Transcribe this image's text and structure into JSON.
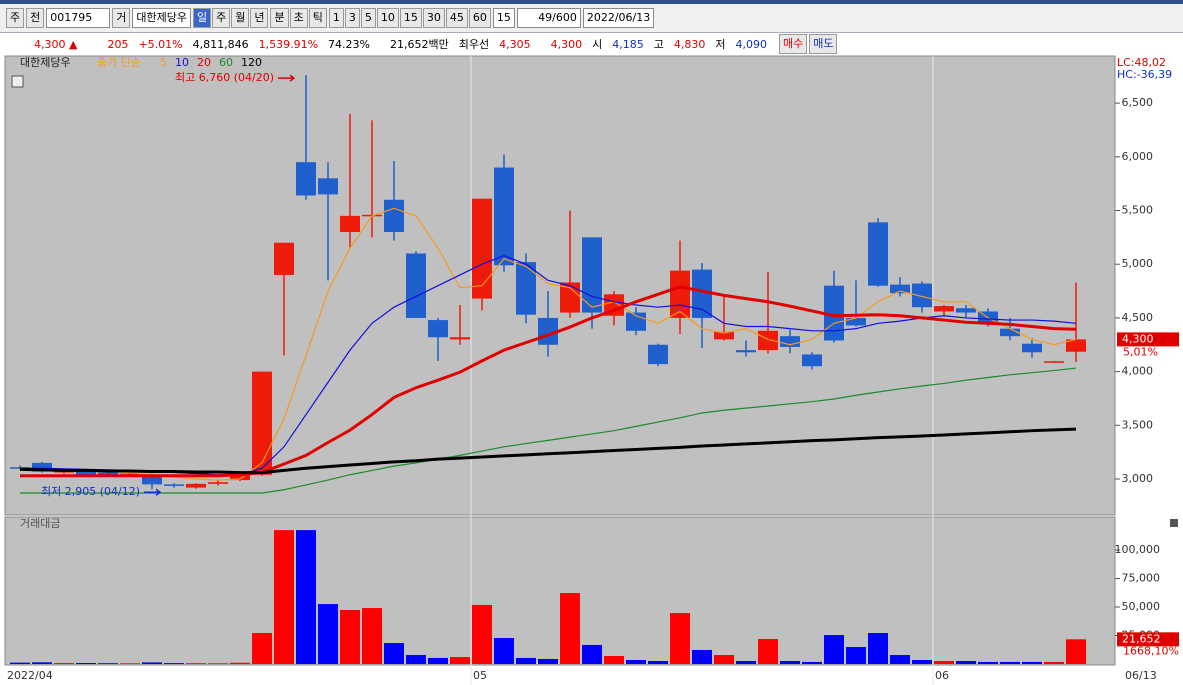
{
  "toolbar": {
    "market": "주",
    "prev": "전",
    "code": "001795",
    "group": "거",
    "name": "대한제당우",
    "periods": [
      "일",
      "주",
      "월",
      "년"
    ],
    "units": [
      "분",
      "초",
      "틱"
    ],
    "intervals": [
      "1",
      "3",
      "5",
      "10",
      "15",
      "30",
      "45",
      "60"
    ],
    "interval_select": "15",
    "count": "49",
    "count_max": "/600",
    "date": "2022/06/13"
  },
  "quote": {
    "price": "4,300 ▲",
    "change": "205",
    "change_pct": "+5.01%",
    "volume": "4,811,846",
    "volume_ratio": "1,539.91%",
    "turnover": "74.23%",
    "amount": "21,652백만",
    "best_label": "최우선",
    "ask": "4,305",
    "bid": "4,300",
    "open_label": "시",
    "open": "4,185",
    "high_label": "고",
    "high": "4,830",
    "low_label": "저",
    "low": "4,090",
    "buy": "매수",
    "sell": "매도"
  },
  "chart_data": [
    {
      "type": "candlestick",
      "title": "대한제당우",
      "ma_label": "종가 단순",
      "lc_label": "LC:48,02",
      "hc_label": "HC:-36,39",
      "categories": [
        "2022/04",
        null,
        null,
        null,
        null,
        null,
        null,
        null,
        null,
        null,
        null,
        null,
        null,
        null,
        null,
        null,
        null,
        null,
        null,
        null,
        null,
        "05",
        null,
        null,
        null,
        null,
        null,
        null,
        null,
        null,
        null,
        null,
        null,
        null,
        null,
        null,
        null,
        null,
        null,
        null,
        null,
        null,
        "06",
        null,
        null,
        null,
        null,
        null,
        null
      ],
      "last_date": "06/13",
      "open": [
        3110,
        3150,
        3060,
        3080,
        3060,
        3030,
        3040,
        2950,
        2920,
        2955,
        2990,
        3040,
        4900,
        5950,
        5800,
        5300,
        5450,
        5600,
        5100,
        4480,
        4300,
        4680,
        5900,
        5020,
        4500,
        4550,
        5250,
        4520,
        4550,
        4250,
        4500,
        4950,
        4300,
        4200,
        4200,
        4330,
        4160,
        4800,
        4500,
        5390,
        4810,
        4820,
        4560,
        4590,
        4560,
        4400,
        4260,
        4090,
        4185
      ],
      "high": [
        3125,
        3160,
        3090,
        3090,
        3070,
        3070,
        3050,
        2960,
        2960,
        2990,
        3070,
        4000,
        5200,
        6760,
        5950,
        6400,
        6340,
        5960,
        5120,
        4500,
        4620,
        5610,
        6020,
        5100,
        4750,
        5500,
        5250,
        4750,
        4600,
        4260,
        5220,
        5010,
        4700,
        4290,
        4930,
        4390,
        4180,
        4940,
        4850,
        5430,
        4880,
        4840,
        4620,
        4620,
        4590,
        4500,
        4310,
        4100,
        4830
      ],
      "low": [
        3090,
        3060,
        3050,
        3030,
        3020,
        3020,
        2905,
        2920,
        2910,
        2940,
        2980,
        3030,
        4150,
        5600,
        4850,
        5150,
        5250,
        5220,
        4500,
        4100,
        4250,
        4570,
        4930,
        4450,
        4140,
        4500,
        4400,
        4430,
        4340,
        4050,
        4350,
        4220,
        4290,
        4140,
        4170,
        4170,
        4020,
        4270,
        4420,
        4790,
        4700,
        4550,
        4520,
        4500,
        4420,
        4290,
        4130,
        4090,
        4090
      ],
      "close": [
        3100,
        3070,
        3075,
        3040,
        3030,
        3050,
        2950,
        2940,
        2955,
        2970,
        3060,
        4000,
        5200,
        5640,
        5650,
        5450,
        5460,
        5300,
        4500,
        4320,
        4320,
        5610,
        4990,
        4530,
        4250,
        4830,
        4550,
        4720,
        4380,
        4070,
        4940,
        4500,
        4370,
        4180,
        4380,
        4230,
        4050,
        4290,
        4430,
        4800,
        4730,
        4600,
        4610,
        4550,
        4450,
        4330,
        4180,
        4096,
        4300
      ],
      "up_color": "#ee1a0a",
      "down_color": "#1f5fce",
      "series": [
        {
          "name": "5",
          "color": "#f59a20",
          "values": [
            3090,
            3095,
            3090,
            3080,
            3075,
            3060,
            3040,
            3020,
            3000,
            2990,
            3000,
            3150,
            3560,
            4150,
            4750,
            5150,
            5450,
            5520,
            5450,
            5150,
            4780,
            4800,
            5050,
            4980,
            4820,
            4780,
            4600,
            4650,
            4520,
            4450,
            4560,
            4400,
            4360,
            4400,
            4300,
            4250,
            4300,
            4450,
            4500,
            4650,
            4750,
            4700,
            4650,
            4650,
            4500,
            4400,
            4300,
            4250,
            4300
          ]
        },
        {
          "name": "10",
          "color": "#1010e0",
          "values": [
            3100,
            3100,
            3095,
            3090,
            3085,
            3080,
            3070,
            3060,
            3050,
            3040,
            3040,
            3100,
            3300,
            3600,
            3900,
            4200,
            4450,
            4600,
            4700,
            4800,
            4900,
            5000,
            5080,
            5000,
            4850,
            4800,
            4700,
            4650,
            4620,
            4600,
            4620,
            4580,
            4450,
            4420,
            4420,
            4400,
            4380,
            4380,
            4400,
            4450,
            4470,
            4500,
            4520,
            4500,
            4490,
            4480,
            4480,
            4470,
            4450
          ]
        },
        {
          "name": "20",
          "color": "#e00000",
          "bold": true,
          "values": [
            3030,
            3030,
            3030,
            3030,
            3030,
            3030,
            3030,
            3030,
            3030,
            3030,
            3040,
            3060,
            3140,
            3220,
            3340,
            3455,
            3600,
            3760,
            3850,
            3920,
            3995,
            4100,
            4200,
            4270,
            4340,
            4415,
            4500,
            4570,
            4650,
            4720,
            4790,
            4750,
            4710,
            4680,
            4650,
            4610,
            4565,
            4520,
            4525,
            4530,
            4520,
            4500,
            4480,
            4460,
            4450,
            4440,
            4420,
            4400,
            4395
          ]
        },
        {
          "name": "60",
          "color": "#1a8c2a",
          "values": [
            2870,
            2870,
            2870,
            2870,
            2870,
            2870,
            2870,
            2870,
            2870,
            2870,
            2870,
            2870,
            2900,
            2945,
            2990,
            3040,
            3080,
            3120,
            3150,
            3185,
            3220,
            3260,
            3300,
            3330,
            3360,
            3390,
            3420,
            3450,
            3490,
            3530,
            3570,
            3615,
            3640,
            3660,
            3680,
            3700,
            3720,
            3745,
            3780,
            3810,
            3840,
            3866,
            3890,
            3920,
            3945,
            3970,
            3990,
            4010,
            4033
          ]
        },
        {
          "name": "120",
          "color": "#000000",
          "bold": true,
          "values": [
            3090,
            3085,
            3080,
            3080,
            3075,
            3075,
            3070,
            3070,
            3065,
            3065,
            3060,
            3060,
            3080,
            3100,
            3115,
            3130,
            3145,
            3160,
            3170,
            3185,
            3195,
            3205,
            3215,
            3225,
            3235,
            3245,
            3255,
            3265,
            3275,
            3285,
            3295,
            3307,
            3317,
            3327,
            3337,
            3347,
            3357,
            3365,
            3375,
            3385,
            3392,
            3400,
            3410,
            3420,
            3430,
            3440,
            3450,
            3458,
            3465
          ]
        }
      ],
      "ylim": [
        2665,
        6920
      ],
      "yticks": [
        {
          "value": 3000,
          "label": "3,000"
        },
        {
          "value": 3500,
          "label": "3,500"
        },
        {
          "value": 4000,
          "label": "4,000"
        },
        {
          "value": 4500,
          "label": "4,500"
        },
        {
          "value": 5000,
          "label": "5,000"
        },
        {
          "value": 5500,
          "label": "5,500"
        },
        {
          "value": 6000,
          "label": "6,000"
        },
        {
          "value": 6500,
          "label": "6,500"
        }
      ],
      "high_label": "최고 6,760 (04/20)",
      "low_label": "최저 2,905 (04/12)",
      "current_price": {
        "value": 4300,
        "label": "4,300"
      },
      "change_label": "5,01%"
    },
    {
      "type": "bar",
      "title": "거래대금",
      "up_color": "#ff0000",
      "down_color": "#0000ff",
      "values": [
        1200,
        1500,
        800,
        900,
        700,
        600,
        1400,
        800,
        700,
        600,
        1100,
        27200,
        117500,
        117500,
        52600,
        47400,
        49100,
        18400,
        7900,
        5300,
        6100,
        51800,
        22800,
        5300,
        4400,
        62300,
        16700,
        7000,
        3500,
        2600,
        44700,
        12300,
        7900,
        2600,
        21900,
        2600,
        1800,
        25400,
        14900,
        27200,
        7900,
        3500,
        2600,
        2600,
        1800,
        1800,
        1800,
        1800,
        21652
      ],
      "ylim": [
        0,
        129000
      ],
      "yticks": [
        {
          "value": 25000,
          "label": "25,000"
        },
        {
          "value": 50000,
          "label": "50,000"
        },
        {
          "value": 75000,
          "label": "75,000"
        },
        {
          "value": 100000,
          "label": "100,000"
        }
      ],
      "current": {
        "value": 21652,
        "label": "21,652"
      },
      "ratio_label": "1668,10%"
    }
  ]
}
